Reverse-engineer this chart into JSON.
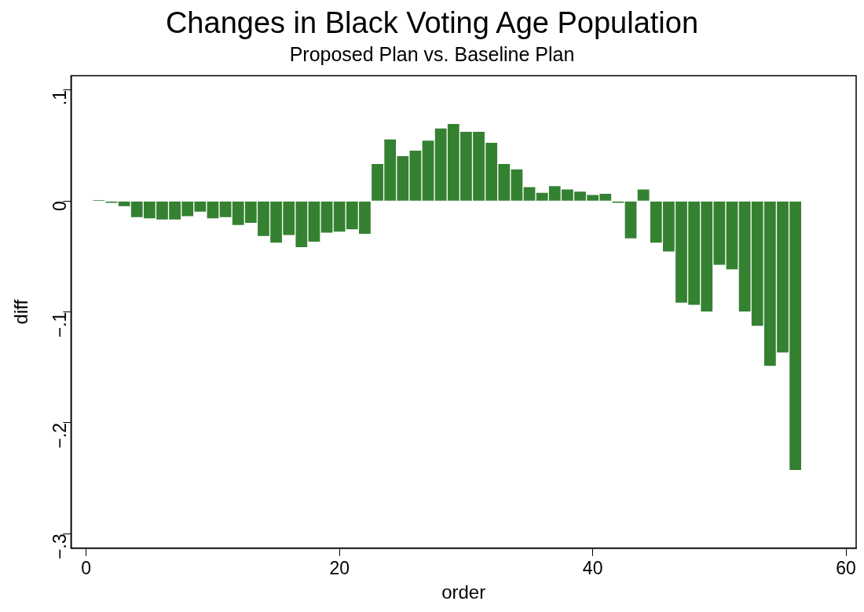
{
  "chart_data": {
    "type": "bar",
    "title": "Changes in Black Voting Age Population",
    "subtitle": "Proposed Plan vs. Baseline Plan",
    "xlabel": "order",
    "ylabel": "diff",
    "x": [
      1,
      2,
      3,
      4,
      5,
      6,
      7,
      8,
      9,
      10,
      11,
      12,
      13,
      14,
      15,
      16,
      17,
      18,
      19,
      20,
      21,
      22,
      23,
      24,
      25,
      26,
      27,
      28,
      29,
      30,
      31,
      32,
      33,
      34,
      35,
      36,
      37,
      38,
      39,
      40,
      41,
      42,
      43,
      44,
      45,
      46,
      47,
      48,
      49,
      50,
      51,
      52,
      53,
      54,
      55,
      56
    ],
    "values": [
      0.001,
      -0.002,
      -0.005,
      -0.015,
      -0.016,
      -0.017,
      -0.017,
      -0.014,
      -0.01,
      -0.016,
      -0.015,
      -0.022,
      -0.02,
      -0.032,
      -0.038,
      -0.031,
      -0.042,
      -0.037,
      -0.029,
      -0.028,
      -0.026,
      -0.03,
      0.034,
      0.056,
      0.041,
      0.046,
      0.055,
      0.066,
      0.07,
      0.063,
      0.063,
      0.053,
      0.034,
      0.029,
      0.013,
      0.008,
      0.014,
      0.011,
      0.009,
      0.006,
      0.007,
      -0.002,
      -0.034,
      0.011,
      -0.038,
      -0.046,
      -0.092,
      -0.094,
      -0.1,
      -0.058,
      -0.062,
      -0.1,
      -0.113,
      -0.149,
      -0.137,
      -0.243
    ],
    "color": "#358132",
    "xlim": [
      -1.2,
      60.8
    ],
    "xticks": [
      0,
      20,
      40,
      60
    ],
    "ylim": [
      -0.313,
      0.113
    ],
    "yticks": [
      {
        "value": -0.3,
        "label": "−.3"
      },
      {
        "value": -0.2,
        "label": "−.2"
      },
      {
        "value": -0.1,
        "label": "−.1"
      },
      {
        "value": 0,
        "label": "0"
      },
      {
        "value": 0.1,
        "label": ".1"
      }
    ],
    "grid": false,
    "legend": false
  }
}
